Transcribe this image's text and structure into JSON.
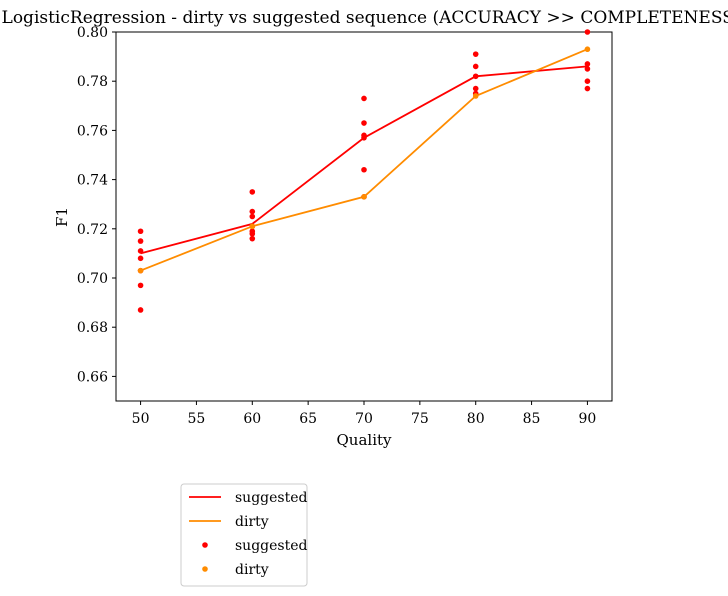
{
  "chart_data": {
    "type": "line",
    "title": "LogisticRegression - dirty vs suggested sequence (ACCURACY >> COMPLETENESS)",
    "xlabel": "Quality",
    "ylabel": "F1",
    "xlim": [
      47.8,
      92.2
    ],
    "ylim": [
      0.65,
      0.8
    ],
    "xticks": [
      50,
      55,
      60,
      65,
      70,
      75,
      80,
      85,
      90
    ],
    "yticks": [
      0.66,
      0.68,
      0.7,
      0.72,
      0.74,
      0.76,
      0.78,
      0.8
    ],
    "xtick_labels": [
      "50",
      "55",
      "60",
      "65",
      "70",
      "75",
      "80",
      "85",
      "90"
    ],
    "ytick_labels": [
      "0.66",
      "0.68",
      "0.70",
      "0.72",
      "0.74",
      "0.76",
      "0.78",
      "0.80"
    ],
    "grid": false,
    "legend_position": "below",
    "x": [
      50,
      60,
      70,
      80,
      90
    ],
    "series": [
      {
        "name": "suggested",
        "kind": "line",
        "color": "#ff0000",
        "values": [
          0.71,
          0.722,
          0.757,
          0.782,
          0.786
        ]
      },
      {
        "name": "dirty",
        "kind": "line",
        "color": "#ff8c00",
        "values": [
          0.703,
          0.721,
          0.733,
          0.774,
          0.793
        ]
      },
      {
        "name": "suggested",
        "kind": "scatter",
        "color": "#ff0000",
        "points": [
          [
            50,
            0.719
          ],
          [
            50,
            0.715
          ],
          [
            50,
            0.711
          ],
          [
            50,
            0.708
          ],
          [
            50,
            0.703
          ],
          [
            50,
            0.697
          ],
          [
            50,
            0.687
          ],
          [
            60,
            0.735
          ],
          [
            60,
            0.727
          ],
          [
            60,
            0.725
          ],
          [
            60,
            0.721
          ],
          [
            60,
            0.719
          ],
          [
            60,
            0.718
          ],
          [
            60,
            0.716
          ],
          [
            70,
            0.773
          ],
          [
            70,
            0.763
          ],
          [
            70,
            0.758
          ],
          [
            70,
            0.757
          ],
          [
            70,
            0.744
          ],
          [
            70,
            0.733
          ],
          [
            80,
            0.791
          ],
          [
            80,
            0.786
          ],
          [
            80,
            0.782
          ],
          [
            80,
            0.777
          ],
          [
            80,
            0.775
          ],
          [
            90,
            0.8
          ],
          [
            90,
            0.787
          ],
          [
            90,
            0.785
          ],
          [
            90,
            0.78
          ],
          [
            90,
            0.777
          ]
        ]
      },
      {
        "name": "dirty",
        "kind": "scatter",
        "color": "#ff8c00",
        "points": [
          [
            50,
            0.703
          ],
          [
            60,
            0.721
          ],
          [
            70,
            0.733
          ],
          [
            80,
            0.774
          ],
          [
            90,
            0.793
          ]
        ]
      }
    ]
  }
}
